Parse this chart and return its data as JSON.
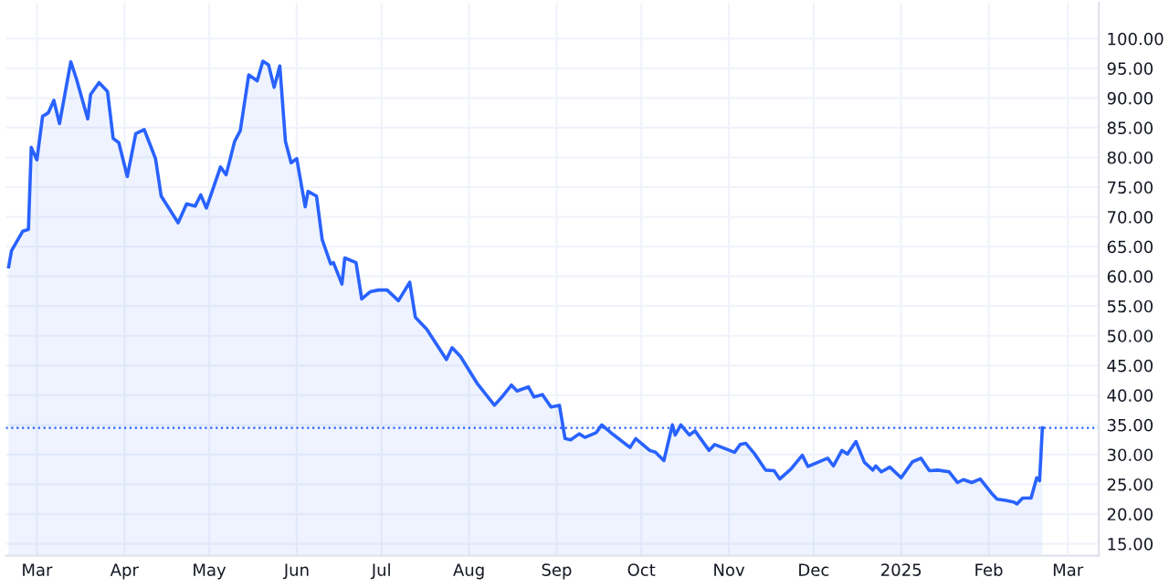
{
  "chart_data": {
    "type": "area",
    "x": [
      "2024-02-20",
      "2024-02-21",
      "2024-02-25",
      "2024-02-27",
      "2024-02-28",
      "2024-03-01",
      "2024-03-03",
      "2024-03-05",
      "2024-03-07",
      "2024-03-09",
      "2024-03-13",
      "2024-03-15",
      "2024-03-19",
      "2024-03-20",
      "2024-03-23",
      "2024-03-26",
      "2024-03-28",
      "2024-03-30",
      "2024-04-02",
      "2024-04-05",
      "2024-04-08",
      "2024-04-12",
      "2024-04-14",
      "2024-04-20",
      "2024-04-23",
      "2024-04-26",
      "2024-04-28",
      "2024-04-30",
      "2024-05-05",
      "2024-05-07",
      "2024-05-10",
      "2024-05-12",
      "2024-05-15",
      "2024-05-18",
      "2024-05-20",
      "2024-05-22",
      "2024-05-24",
      "2024-05-26",
      "2024-05-28",
      "2024-05-30",
      "2024-06-01",
      "2024-06-04",
      "2024-06-05",
      "2024-06-08",
      "2024-06-10",
      "2024-06-13",
      "2024-06-14",
      "2024-06-17",
      "2024-06-18",
      "2024-06-22",
      "2024-06-24",
      "2024-06-27",
      "2024-06-30",
      "2024-07-03",
      "2024-07-07",
      "2024-07-11",
      "2024-07-13",
      "2024-07-17",
      "2024-07-24",
      "2024-07-26",
      "2024-07-29",
      "2024-08-04",
      "2024-08-10",
      "2024-08-13",
      "2024-08-16",
      "2024-08-18",
      "2024-08-22",
      "2024-08-24",
      "2024-08-27",
      "2024-08-30",
      "2024-09-02",
      "2024-09-04",
      "2024-09-06",
      "2024-09-09",
      "2024-09-11",
      "2024-09-15",
      "2024-09-17",
      "2024-09-21",
      "2024-09-27",
      "2024-09-29",
      "2024-10-04",
      "2024-10-06",
      "2024-10-09",
      "2024-10-12",
      "2024-10-13",
      "2024-10-15",
      "2024-10-18",
      "2024-10-20",
      "2024-10-25",
      "2024-10-27",
      "2024-11-03",
      "2024-11-05",
      "2024-11-07",
      "2024-11-10",
      "2024-11-14",
      "2024-11-17",
      "2024-11-19",
      "2024-11-23",
      "2024-11-27",
      "2024-11-29",
      "2024-12-04",
      "2024-12-06",
      "2024-12-08",
      "2024-12-11",
      "2024-12-13",
      "2024-12-16",
      "2024-12-19",
      "2024-12-22",
      "2024-12-23",
      "2024-12-25",
      "2024-12-28",
      "2025-01-01",
      "2025-01-05",
      "2025-01-08",
      "2025-01-11",
      "2025-01-14",
      "2025-01-18",
      "2025-01-21",
      "2025-01-23",
      "2025-01-26",
      "2025-01-29",
      "2025-02-02",
      "2025-02-04",
      "2025-02-07",
      "2025-02-10",
      "2025-02-11",
      "2025-02-13",
      "2025-02-16",
      "2025-02-18",
      "2025-02-19",
      "2025-02-20"
    ],
    "series": [
      {
        "color": "#2962ff",
        "values": [
          61.6,
          64.3,
          67.6,
          67.9,
          81.7,
          79.6,
          86.9,
          87.5,
          89.6,
          85.7,
          96.1,
          93.2,
          86.5,
          90.6,
          92.6,
          91.1,
          83.2,
          82.5,
          76.8,
          84.0,
          84.7,
          79.8,
          73.5,
          69.0,
          72.2,
          71.8,
          73.7,
          71.5,
          78.4,
          77.1,
          82.7,
          84.5,
          93.9,
          92.9,
          96.2,
          95.6,
          91.8,
          95.4,
          82.7,
          79.1,
          79.8,
          71.7,
          74.3,
          73.5,
          66.2,
          62.1,
          62.3,
          58.7,
          63.1,
          62.3,
          56.2,
          57.4,
          57.7,
          57.7,
          55.9,
          59.0,
          53.1,
          51.1,
          46.0,
          48.0,
          46.5,
          41.9,
          38.3,
          39.9,
          41.7,
          40.7,
          41.4,
          39.7,
          40.1,
          38.0,
          38.3,
          32.7,
          32.5,
          33.5,
          32.9,
          33.7,
          35.0,
          33.4,
          31.2,
          32.7,
          30.7,
          30.4,
          29.0,
          35.0,
          33.3,
          35.0,
          33.3,
          34.0,
          30.7,
          31.7,
          30.4,
          31.7,
          31.9,
          30.2,
          27.4,
          27.3,
          25.9,
          27.6,
          29.9,
          28.0,
          29.0,
          29.4,
          28.1,
          30.7,
          30.1,
          32.2,
          28.7,
          27.4,
          28.1,
          27.1,
          27.9,
          26.1,
          28.8,
          29.4,
          27.3,
          27.4,
          27.1,
          25.3,
          25.8,
          25.3,
          25.9,
          23.5,
          22.5,
          22.3,
          22.0,
          21.7,
          22.7,
          22.7,
          26.1,
          25.6,
          34.5
        ]
      }
    ],
    "xlim": [
      "2024-02-19",
      "2025-03-12"
    ],
    "xticks": [
      {
        "value": "2024-03-01",
        "label": "Mar"
      },
      {
        "value": "2024-04-01",
        "label": "Apr"
      },
      {
        "value": "2024-05-01",
        "label": "May"
      },
      {
        "value": "2024-06-01",
        "label": "Jun"
      },
      {
        "value": "2024-07-01",
        "label": "Jul"
      },
      {
        "value": "2024-08-01",
        "label": "Aug"
      },
      {
        "value": "2024-09-01",
        "label": "Sep"
      },
      {
        "value": "2024-10-01",
        "label": "Oct"
      },
      {
        "value": "2024-11-01",
        "label": "Nov"
      },
      {
        "value": "2024-12-01",
        "label": "Dec"
      },
      {
        "value": "2025-01-01",
        "label": "2025"
      },
      {
        "value": "2025-02-01",
        "label": "Feb"
      },
      {
        "value": "2025-03-01",
        "label": "Mar"
      }
    ],
    "ylim": [
      13,
      106
    ],
    "yticks": [
      {
        "value": 15,
        "label": "15.00"
      },
      {
        "value": 20,
        "label": "20.00"
      },
      {
        "value": 25,
        "label": "25.00"
      },
      {
        "value": 30,
        "label": "30.00"
      },
      {
        "value": 35,
        "label": "35.00"
      },
      {
        "value": 40,
        "label": "40.00"
      },
      {
        "value": 45,
        "label": "45.00"
      },
      {
        "value": 50,
        "label": "50.00"
      },
      {
        "value": 55,
        "label": "55.00"
      },
      {
        "value": 60,
        "label": "60.00"
      },
      {
        "value": 65,
        "label": "65.00"
      },
      {
        "value": 70,
        "label": "70.00"
      },
      {
        "value": 75,
        "label": "75.00"
      },
      {
        "value": 80,
        "label": "80.00"
      },
      {
        "value": 85,
        "label": "85.00"
      },
      {
        "value": 90,
        "label": "90.00"
      },
      {
        "value": 95,
        "label": "95.00"
      },
      {
        "value": 100,
        "label": "100.00"
      }
    ],
    "ref_lines": [
      {
        "axis": "y",
        "value": 34.5,
        "color": "#2962ff",
        "line_style": "dotted"
      }
    ],
    "grid": true
  }
}
